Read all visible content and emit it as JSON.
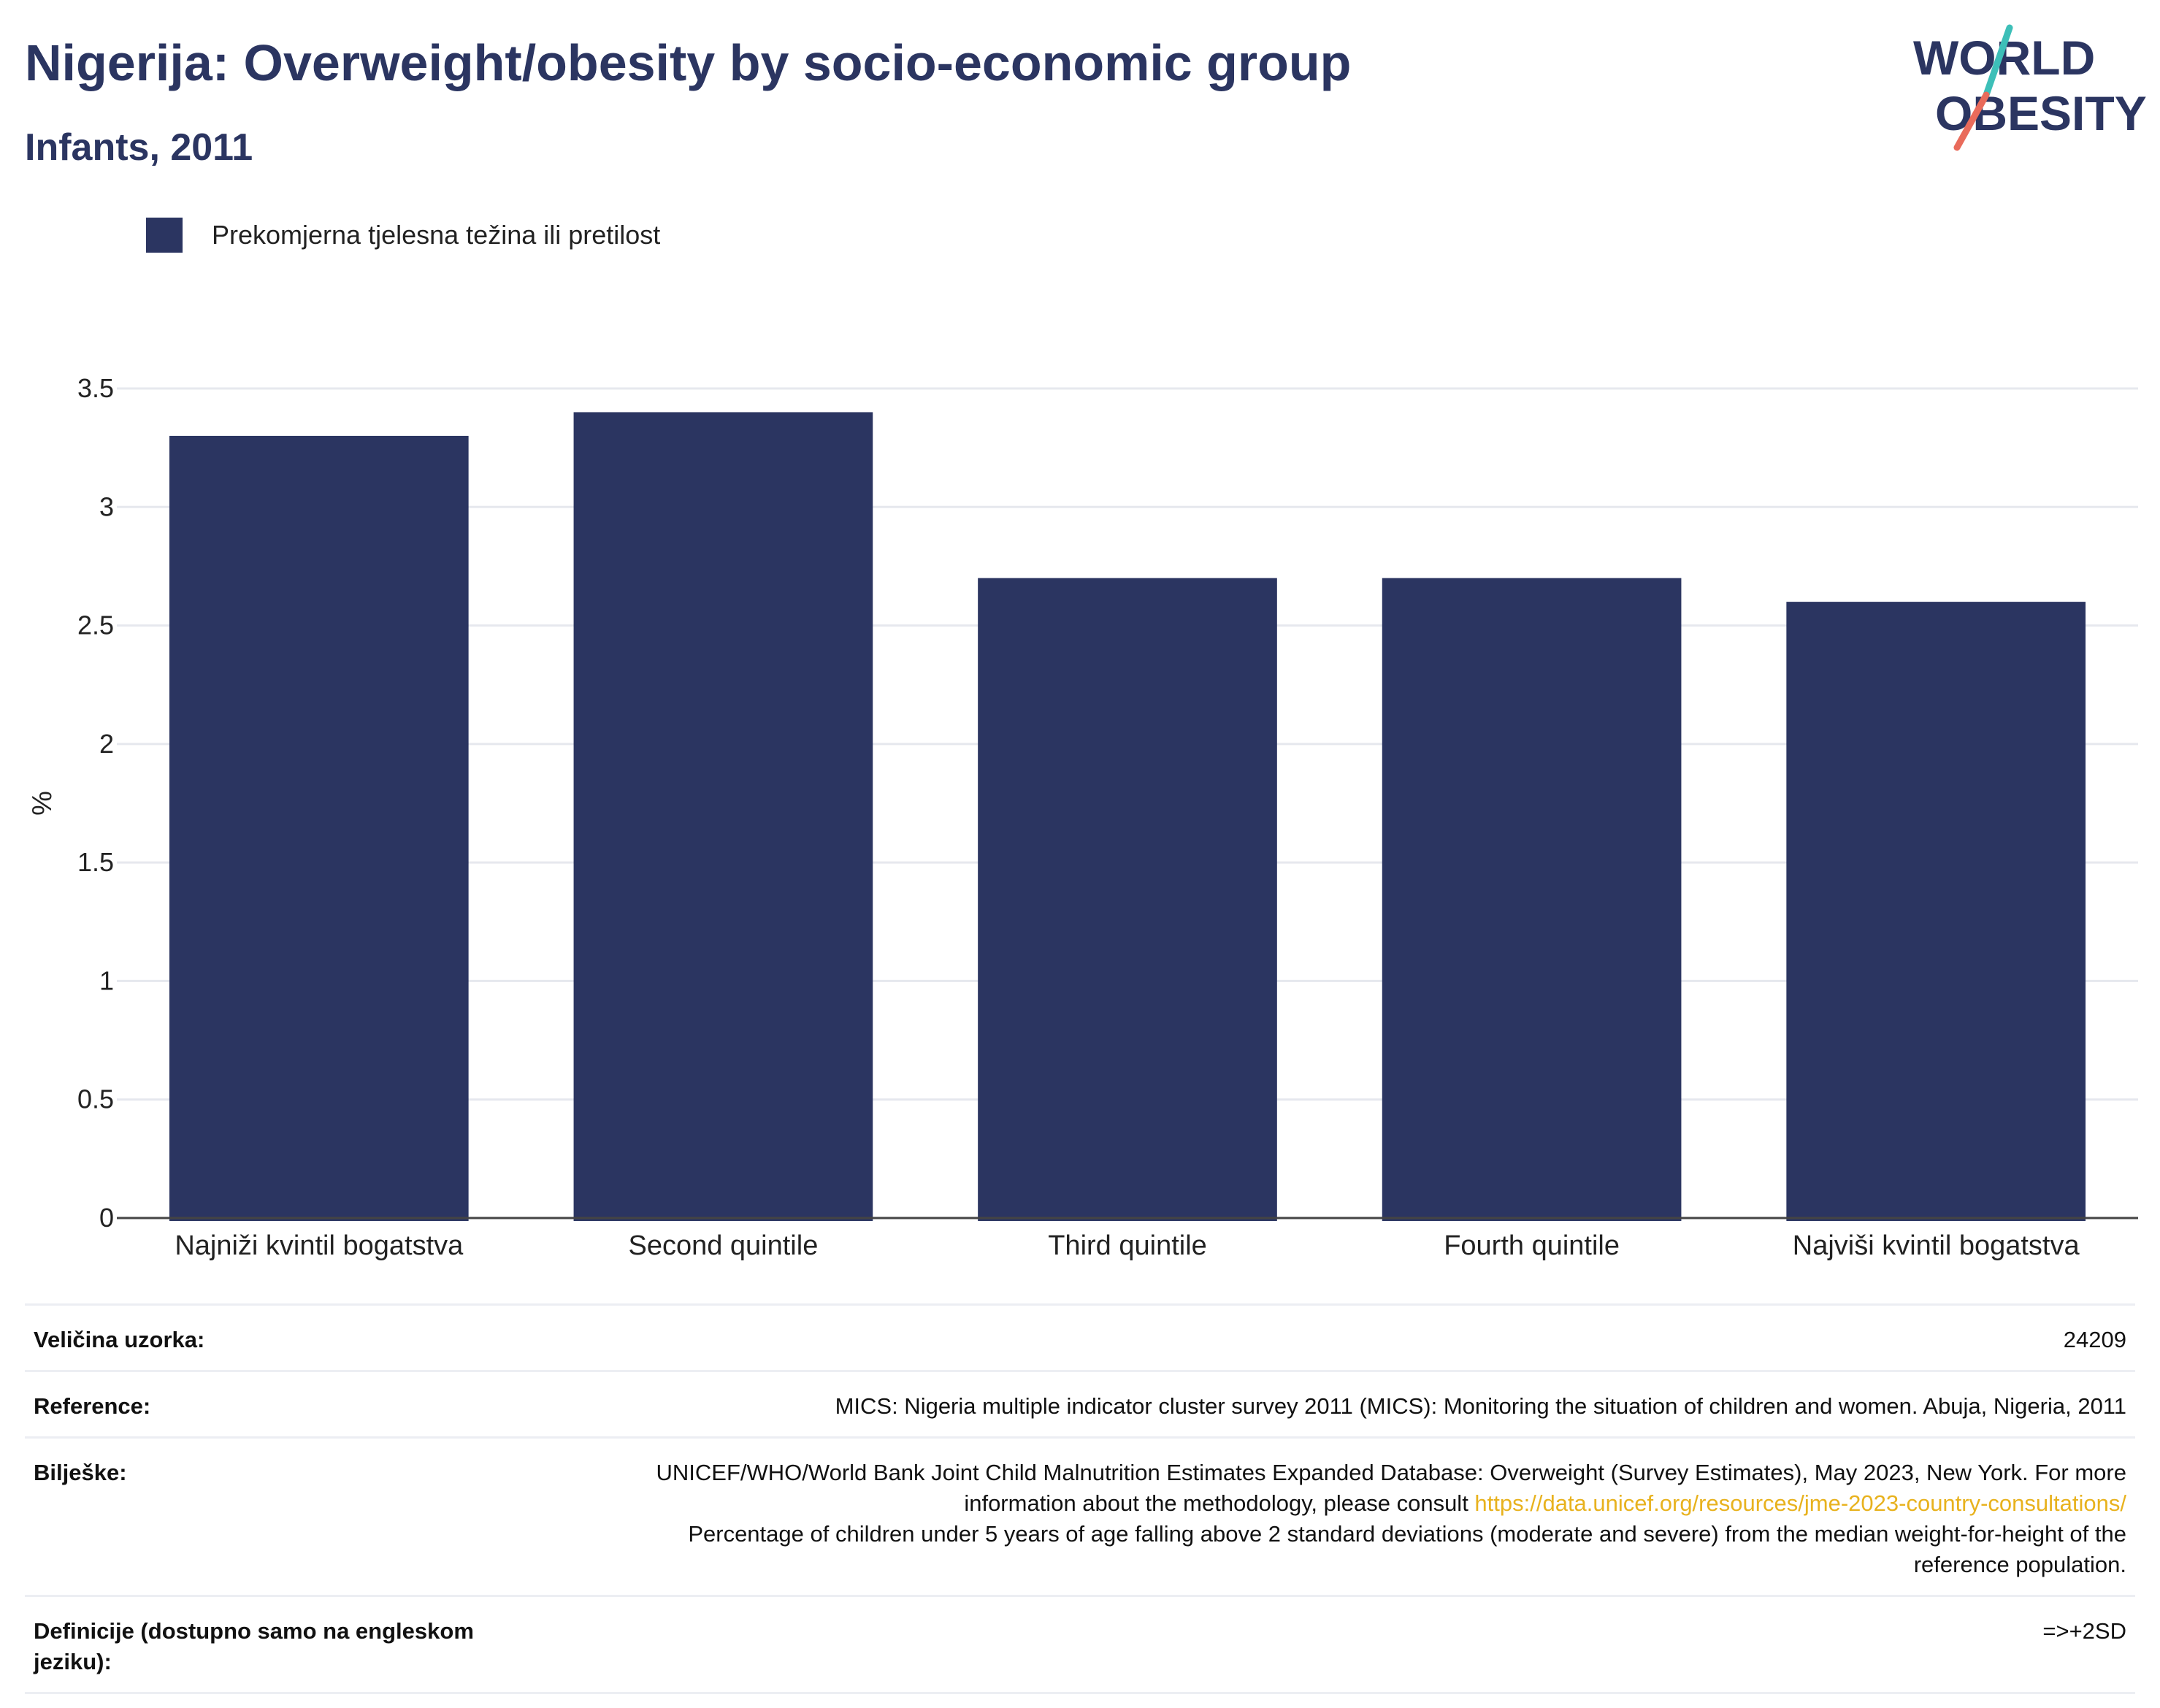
{
  "header": {
    "title": "Nigerija: Overweight/obesity by socio-economic group",
    "subtitle": "Infants, 2011"
  },
  "logo": {
    "line1": "WORLD",
    "line2": "OBESITY",
    "accent_teal": "#3dbfb8",
    "accent_coral": "#e96b5b"
  },
  "legend": {
    "label": "Prekomjerna tjelesna težina ili pretilost",
    "color": "#2b3561"
  },
  "chart_data": {
    "type": "bar",
    "categories": [
      "Najniži kvintil bogatstva",
      "Second quintile",
      "Third quintile",
      "Fourth quintile",
      "Najviši kvintil bogatstva"
    ],
    "series": [
      {
        "name": "Prekomjerna tjelesna težina ili pretilost",
        "values": [
          3.3,
          3.4,
          2.7,
          2.7,
          2.6
        ],
        "color": "#2b3561"
      }
    ],
    "ylabel": "%",
    "ylim": [
      0,
      3.5
    ],
    "yticks": [
      0,
      0.5,
      1,
      1.5,
      2,
      2.5,
      3,
      3.5
    ],
    "ytick_labels": [
      "0",
      "0.5",
      "1",
      "1.5",
      "2",
      "2.5",
      "3",
      "3.5"
    ],
    "grid": true,
    "legend_position": "top-left"
  },
  "info": {
    "sample_label": "Veličina uzorka:",
    "sample_value": "24209",
    "reference_label": "Reference:",
    "reference_value": "MICS: Nigeria multiple indicator cluster survey 2011 (MICS): Monitoring the situation of children and women. Abuja, Nigeria, 2011",
    "notes_label": "Bilješke:",
    "notes_text_1": "UNICEF/WHO/World Bank Joint Child Malnutrition Estimates Expanded Database: Overweight (Survey Estimates), May 2023, New York. For more information about the methodology, please consult ",
    "notes_link": "https://data.unicef.org/resources/jme-2023-country-consultations/",
    "notes_text_2": "Percentage of children under 5 years of age falling above 2 standard deviations (moderate and severe) from the median weight-for-height of the reference population.",
    "definitions_label": "Definicije (dostupno samo na engleskom jeziku):",
    "definitions_value": "=>+2SD"
  }
}
